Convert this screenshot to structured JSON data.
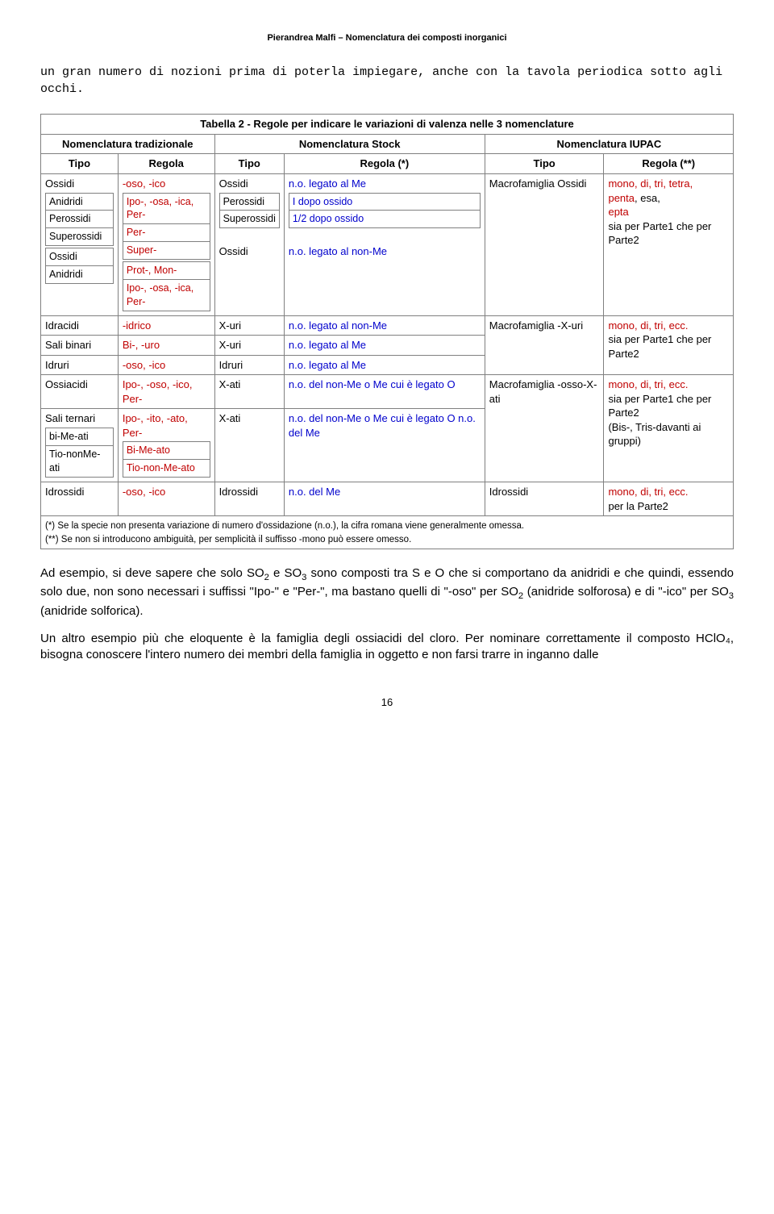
{
  "header": {
    "author": "Pierandrea Malfi – Nomenclatura dei composti inorganici"
  },
  "intro": {
    "text": "un gran numero di nozioni prima di poterla impiegare, anche con la tavola periodica sotto agli occhi."
  },
  "table": {
    "title": "Tabella 2 - Regole per indicare le variazioni di valenza nelle 3 nomenclature",
    "group_headers": {
      "trad": "Nomenclatura tradizionale",
      "stock": "Nomenclatura Stock",
      "iupac": "Nomenclatura IUPAC"
    },
    "col_headers": {
      "tipo": "Tipo",
      "regola": "Regola",
      "regola_star": "Regola (*)",
      "regola_dstar": "Regola (**)"
    },
    "row1": {
      "c1_label": "Ossidi",
      "c1_inner": [
        "Anidridi",
        "Perossidi",
        "Superossidi"
      ],
      "c1b_inner": [
        "Ossidi",
        "Anidridi"
      ],
      "c2_top": "-oso, -ico",
      "c2_inner1": "Ipo-, -osa, -ica, Per-",
      "c2_inner2": "Per-",
      "c2_inner3": "Super-",
      "c2_inner4": "Prot-, Mon-",
      "c2_inner5": "Ipo-, -osa, -ica, Per-",
      "c3_label": "Ossidi",
      "c3_inner": [
        "Perossidi",
        "Superossidi"
      ],
      "c3_label2": "Ossidi",
      "c4_top": "n.o. legato al Me",
      "c4_inner1": "I dopo ossido",
      "c4_inner2": "1/2 dopo ossido",
      "c4_bot": "n.o. legato al non-Me",
      "c5": "Macrofamiglia Ossidi",
      "c6_l1": "mono, di, tri, tetra,",
      "c6_l2a": "penta",
      "c6_l2b": ", esa, ",
      "c6_l2c": "epta",
      "c6_l3": "sia per Parte1 che per Parte2"
    },
    "row2": {
      "r2a_c1": "Idracidi",
      "r2a_c2": "-idrico",
      "r2a_c3": "X-uri",
      "r2a_c4": "n.o. legato al non-Me",
      "r2b_c1": "Sali binari",
      "r2b_c2": "Bi-, -uro",
      "r2b_c3": "X-uri",
      "r2b_c4": "n.o. legato al Me",
      "r2c_c1": "Idruri",
      "r2c_c2": "-oso, -ico",
      "r2c_c3": "Idruri",
      "r2c_c4": "n.o. legato al Me",
      "c5": "Macrofamiglia -X-uri",
      "c6": "mono, di, tri, ecc.",
      "c6b": "sia per Parte1 che per Parte2"
    },
    "row3": {
      "r3a_c1": "Ossiacidi",
      "r3a_c2": "Ipo-, -oso, -ico, Per-",
      "r3a_c3": "X-ati",
      "r3a_c4": "n.o. del non-Me o Me cui è legato O",
      "r3b_c1": "Sali ternari",
      "r3b_inner1": "bi-Me-ati",
      "r3b_inner2": "Tio-nonMe-ati",
      "r3b_c2": "Ipo-, -ito, -ato, Per-",
      "r3b_c2_inner1": "Bi-Me-ato",
      "r3b_c2_inner2": "Tio-non-Me-ato",
      "r3b_c3": "X-ati",
      "r3b_c4": "n.o. del non-Me o Me cui è legato O\nn.o. del Me",
      "c5": "Macrofamiglia -osso-X-ati",
      "c6a": "mono, di, tri, ecc.",
      "c6b": "sia per Parte1 che per Parte2",
      "c6c": "(Bis-, Tris-davanti ai gruppi)"
    },
    "row4": {
      "c1": "Idrossidi",
      "c2": "-oso, -ico",
      "c3": "Idrossidi",
      "c4": "n.o. del Me",
      "c5": "Idrossidi",
      "c6a": "mono, di, tri, ecc.",
      "c6b": "per la Parte2"
    },
    "footnote1": "(*) Se la specie non presenta variazione di numero d'ossidazione (n.o.), la cifra romana viene generalmente omessa.",
    "footnote2": "(**) Se non si introducono ambiguità, per semplicità il suffisso -mono può essere omesso."
  },
  "paras": {
    "p1a": "Ad esempio, si deve sapere che solo SO",
    "p1b": " e SO",
    "p1c": " sono composti tra S e O che si comportano da anidridi e che quindi, essendo solo due, non sono necessari i suffissi \"Ipo-\" e \"Per-\", ma bastano quelli di \"-oso\" per SO",
    "p1d": " (anidride solforosa) e di \"-ico\" per SO",
    "p1e": " (anidride solforica).",
    "p2": "Un altro esempio più che eloquente è la famiglia degli ossiacidi del cloro. Per nominare correttamente il composto HClO₄, bisogna conoscere l'intero numero dei membri della famiglia in oggetto e non farsi trarre in inganno dalle"
  },
  "pagenum": "16",
  "colors": {
    "red": "#c00000",
    "blue": "#0000cc",
    "border": "#808080"
  }
}
